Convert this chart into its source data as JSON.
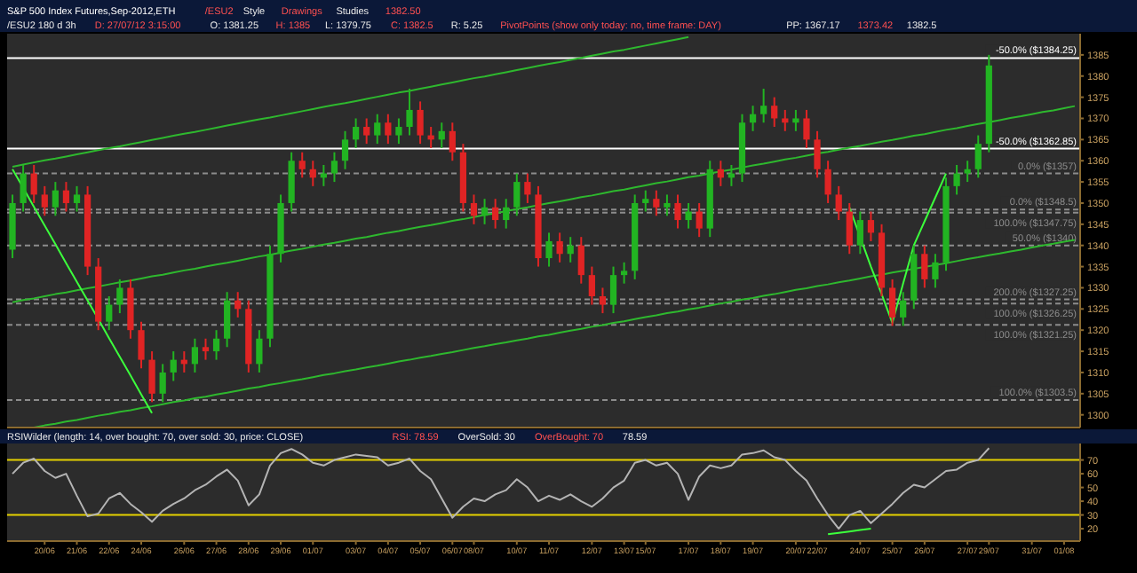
{
  "chart_data": [
    {
      "type": "candlestick",
      "title": "S&P 500 Index Futures,Sep-2012,ETH",
      "categories": [
        null,
        null,
        null,
        null,
        null,
        null,
        null,
        null,
        null,
        null,
        null,
        null,
        null,
        null,
        null,
        null,
        null,
        null,
        null,
        null,
        null,
        null,
        null,
        null,
        null,
        null,
        null,
        null,
        null,
        null,
        null,
        null,
        null,
        null,
        null,
        null,
        null,
        null,
        null,
        null,
        null,
        null,
        null,
        null,
        null,
        null,
        null,
        null,
        null,
        null,
        null,
        null,
        null,
        null,
        null,
        null,
        null,
        null,
        null,
        null,
        null,
        null,
        null,
        null,
        null,
        null,
        null,
        null,
        null,
        null,
        null,
        null,
        null,
        null,
        null,
        null,
        null,
        null,
        null,
        null,
        null,
        null,
        null,
        null,
        null,
        null,
        null,
        null,
        null,
        null,
        null,
        null,
        null,
        null,
        null,
        null,
        null,
        null,
        null,
        null
      ],
      "ohlc": [
        [
          1339,
          1352,
          1337,
          1350
        ],
        [
          1350,
          1359,
          1348,
          1357
        ],
        [
          1357,
          1359,
          1350,
          1352
        ],
        [
          1352,
          1354,
          1347,
          1349
        ],
        [
          1349,
          1355,
          1347,
          1353
        ],
        [
          1353,
          1355,
          1348,
          1350
        ],
        [
          1350,
          1354,
          1348,
          1352
        ],
        [
          1352,
          1354,
          1333,
          1335
        ],
        [
          1335,
          1337,
          1320,
          1322
        ],
        [
          1322,
          1328,
          1320,
          1326
        ],
        [
          1326,
          1332,
          1324,
          1330
        ],
        [
          1330,
          1332,
          1318,
          1320
        ],
        [
          1320,
          1322,
          1311,
          1313
        ],
        [
          1313,
          1315,
          1303,
          1305
        ],
        [
          1305,
          1312,
          1303,
          1310
        ],
        [
          1310,
          1315,
          1308,
          1313
        ],
        [
          1313,
          1315,
          1310,
          1312
        ],
        [
          1312,
          1318,
          1310,
          1316
        ],
        [
          1316,
          1318,
          1313,
          1315
        ],
        [
          1315,
          1320,
          1313,
          1318
        ],
        [
          1318,
          1329,
          1316,
          1327
        ],
        [
          1327,
          1329,
          1323,
          1325
        ],
        [
          1325,
          1327,
          1310,
          1312
        ],
        [
          1312,
          1320,
          1310,
          1318
        ],
        [
          1318,
          1340,
          1316,
          1338
        ],
        [
          1338,
          1352,
          1336,
          1350
        ],
        [
          1350,
          1362,
          1348,
          1360
        ],
        [
          1360,
          1362,
          1356,
          1358
        ],
        [
          1358,
          1360,
          1354,
          1356
        ],
        [
          1356,
          1359,
          1354,
          1357
        ],
        [
          1357,
          1362,
          1355,
          1360
        ],
        [
          1360,
          1367,
          1358,
          1365
        ],
        [
          1365,
          1370,
          1363,
          1368
        ],
        [
          1368,
          1370,
          1364,
          1366
        ],
        [
          1366,
          1371,
          1364,
          1369
        ],
        [
          1369,
          1371,
          1364,
          1366
        ],
        [
          1366,
          1370,
          1364,
          1368
        ],
        [
          1368,
          1377,
          1366,
          1372
        ],
        [
          1372,
          1374,
          1364,
          1366
        ],
        [
          1366,
          1368,
          1363,
          1365
        ],
        [
          1365,
          1369,
          1363,
          1367
        ],
        [
          1367,
          1369,
          1360,
          1362
        ],
        [
          1362,
          1364,
          1348,
          1350
        ],
        [
          1350,
          1352,
          1345,
          1347
        ],
        [
          1347,
          1351,
          1345,
          1349
        ],
        [
          1349,
          1351,
          1344,
          1346
        ],
        [
          1346,
          1351,
          1344,
          1349
        ],
        [
          1349,
          1357,
          1347,
          1355
        ],
        [
          1355,
          1357,
          1350,
          1352
        ],
        [
          1352,
          1354,
          1335,
          1337
        ],
        [
          1337,
          1343,
          1335,
          1341
        ],
        [
          1341,
          1343,
          1336,
          1338
        ],
        [
          1338,
          1342,
          1336,
          1340
        ],
        [
          1340,
          1342,
          1331,
          1333
        ],
        [
          1333,
          1335,
          1326,
          1328
        ],
        [
          1328,
          1330,
          1324,
          1326
        ],
        [
          1326,
          1335,
          1324,
          1333
        ],
        [
          1333,
          1336,
          1331,
          1334
        ],
        [
          1334,
          1352,
          1332,
          1350
        ],
        [
          1350,
          1353,
          1348,
          1351
        ],
        [
          1351,
          1353,
          1347,
          1349
        ],
        [
          1349,
          1352,
          1347,
          1350
        ],
        [
          1350,
          1352,
          1344,
          1346
        ],
        [
          1346,
          1350,
          1344,
          1348
        ],
        [
          1348,
          1350,
          1342,
          1344
        ],
        [
          1344,
          1360,
          1342,
          1358
        ],
        [
          1358,
          1360,
          1354,
          1356
        ],
        [
          1356,
          1359,
          1354,
          1357
        ],
        [
          1357,
          1371,
          1355,
          1369
        ],
        [
          1369,
          1373,
          1367,
          1371
        ],
        [
          1371,
          1377,
          1369,
          1373
        ],
        [
          1373,
          1375,
          1368,
          1370
        ],
        [
          1370,
          1372,
          1367,
          1369
        ],
        [
          1369,
          1372,
          1367,
          1370
        ],
        [
          1370,
          1372,
          1363,
          1365
        ],
        [
          1365,
          1367,
          1356,
          1358
        ],
        [
          1358,
          1360,
          1350,
          1352
        ],
        [
          1352,
          1354,
          1346,
          1348
        ],
        [
          1348,
          1350,
          1338,
          1340
        ],
        [
          1340,
          1348,
          1338,
          1346
        ],
        [
          1346,
          1348,
          1341,
          1343
        ],
        [
          1343,
          1345,
          1328,
          1330
        ],
        [
          1330,
          1332,
          1321,
          1323
        ],
        [
          1323,
          1329,
          1321,
          1327
        ],
        [
          1327,
          1340,
          1325,
          1338
        ],
        [
          1338,
          1340,
          1330,
          1332
        ],
        [
          1332,
          1338,
          1330,
          1336
        ],
        [
          1336,
          1356,
          1334,
          1354
        ],
        [
          1354,
          1359,
          1352,
          1357
        ],
        [
          1357,
          1360,
          1355,
          1358
        ],
        [
          1358,
          1366,
          1356,
          1364
        ],
        [
          1364,
          1385,
          1362,
          1382.5
        ],
        null,
        null,
        null,
        null,
        null,
        null,
        null,
        null
      ],
      "colors": [
        "#22b422",
        "#22b422",
        "#e02424",
        "#e02424",
        "#22b422",
        "#e02424",
        "#22b422",
        "#e02424",
        "#e02424",
        "#22b422",
        "#22b422",
        "#e02424",
        "#e02424",
        "#e02424",
        "#22b422",
        "#22b422",
        "#e02424",
        "#22b422",
        "#e02424",
        "#22b422",
        "#22b422",
        "#e02424",
        "#e02424",
        "#22b422",
        "#22b422",
        "#22b422",
        "#22b422",
        "#e02424",
        "#e02424",
        "#22b422",
        "#22b422",
        "#22b422",
        "#22b422",
        "#e02424",
        "#22b422",
        "#e02424",
        "#22b422",
        "#22b422",
        "#e02424",
        "#e02424",
        "#22b422",
        "#e02424",
        "#e02424",
        "#e02424",
        "#22b422",
        "#e02424",
        "#22b422",
        "#22b422",
        "#e02424",
        "#e02424",
        "#22b422",
        "#e02424",
        "#22b422",
        "#e02424",
        "#e02424",
        "#e02424",
        "#22b422",
        "#22b422",
        "#22b422",
        "#22b422",
        "#e02424",
        "#22b422",
        "#e02424",
        "#22b422",
        "#e02424",
        "#22b422",
        "#e02424",
        "#22b422",
        "#22b422",
        "#22b422",
        "#22b422",
        "#e02424",
        "#e02424",
        "#22b422",
        "#e02424",
        "#e02424",
        "#e02424",
        "#e02424",
        "#e02424",
        "#22b422",
        "#e02424",
        "#e02424",
        "#e02424",
        "#22b422",
        "#22b422",
        "#e02424",
        "#22b422",
        "#22b422",
        "#22b422",
        "#22b422",
        "#22b422",
        "#22b422",
        null,
        null,
        null,
        null,
        null,
        null,
        null,
        null
      ],
      "ylim": [
        1297,
        1390
      ],
      "yticks": [
        1300,
        1305,
        1310,
        1315,
        1320,
        1325,
        1330,
        1335,
        1340,
        1345,
        1350,
        1355,
        1360,
        1365,
        1370,
        1375,
        1380,
        1385
      ],
      "tick_labels": "y",
      "series": [
        {
          "type": "line",
          "color": "#2eb82e",
          "values": [
            1358.6,
            1359.1,
            1359.6,
            1360.1,
            1360.5,
            1361.0,
            1361.5,
            1362.0,
            1362.5,
            1363.0,
            1363.4,
            1363.9,
            1364.4,
            1364.9,
            1365.4,
            1365.9,
            1366.4,
            1366.8,
            1367.3,
            1367.8,
            1368.3,
            1368.8,
            1369.3,
            1369.8,
            1370.2,
            1370.7,
            1371.2,
            1371.7,
            1372.2,
            1372.7,
            1373.2,
            1373.6,
            1374.1,
            1374.6,
            1375.1,
            1375.6,
            1376.1,
            1376.5,
            1377.0,
            1377.5,
            1378.0,
            1378.5,
            1379.0,
            1379.5,
            1379.9,
            1380.4,
            1380.9,
            1381.4,
            1381.9,
            1382.4,
            1382.9,
            1383.3,
            1383.8,
            1384.3,
            1384.8,
            1385.3,
            1385.8,
            1386.2,
            1386.7,
            1387.2,
            1387.7,
            1388.2,
            1388.7,
            1389.2,
            null,
            null,
            null,
            null,
            null,
            null,
            null,
            null,
            null,
            null,
            null,
            null,
            null,
            null,
            null,
            null,
            null,
            null,
            null,
            null,
            null,
            null,
            null,
            null,
            null,
            null,
            null,
            null,
            null,
            null,
            null,
            null,
            null,
            null,
            null,
            null
          ]
        },
        {
          "type": "line",
          "color": "#2eb82e",
          "values": [
            1326.6,
            1327.1,
            1327.5,
            1328.0,
            1328.5,
            1328.9,
            1329.4,
            1329.9,
            1330.3,
            1330.8,
            1331.3,
            1331.7,
            1332.2,
            1332.7,
            1333.1,
            1333.6,
            1334.1,
            1334.5,
            1335.0,
            1335.5,
            1335.9,
            1336.4,
            1336.9,
            1337.4,
            1337.8,
            1338.3,
            1338.8,
            1339.2,
            1339.7,
            1340.2,
            1340.6,
            1341.1,
            1341.6,
            1342.0,
            1342.5,
            1343.0,
            1343.4,
            1343.9,
            1344.4,
            1344.8,
            1345.3,
            1345.8,
            1346.2,
            1346.7,
            1347.2,
            1347.6,
            1348.1,
            1348.6,
            1349.0,
            1349.5,
            1350.0,
            1350.4,
            1350.9,
            1351.4,
            1351.8,
            1352.3,
            1352.8,
            1353.2,
            1353.7,
            1354.2,
            1354.7,
            1355.1,
            1355.6,
            1356.1,
            1356.5,
            1357.0,
            1357.5,
            1357.9,
            1358.4,
            1358.9,
            1359.3,
            1359.8,
            1360.3,
            1360.7,
            1361.2,
            1361.7,
            1362.1,
            1362.6,
            1363.1,
            1363.5,
            1364.0,
            1364.5,
            1364.9,
            1365.4,
            1365.9,
            1366.3,
            1366.8,
            1367.3,
            1367.7,
            1368.2,
            1368.7,
            1369.1,
            1369.6,
            1370.1,
            1370.5,
            1371.0,
            1371.5,
            1371.9,
            1372.4,
            1372.9
          ]
        },
        {
          "type": "line",
          "color": "#2eb82e",
          "values": [
            null,
            null,
            1297.0,
            1297.5,
            1297.9,
            1298.4,
            1298.8,
            1299.3,
            1299.8,
            1300.2,
            1300.7,
            1301.1,
            1301.6,
            1302.0,
            1302.5,
            1303.0,
            1303.4,
            1303.9,
            1304.3,
            1304.8,
            1305.2,
            1305.7,
            1306.2,
            1306.6,
            1307.1,
            1307.5,
            1308.0,
            1308.4,
            1308.9,
            1309.4,
            1309.8,
            1310.3,
            1310.7,
            1311.2,
            1311.6,
            1312.1,
            1312.6,
            1313.0,
            1313.5,
            1313.9,
            1314.4,
            1314.8,
            1315.3,
            1315.8,
            1316.2,
            1316.7,
            1317.1,
            1317.6,
            1318.0,
            1318.5,
            1318.9,
            1319.4,
            1319.9,
            1320.3,
            1320.8,
            1321.2,
            1321.7,
            1322.1,
            1322.6,
            1323.1,
            1323.5,
            1324.0,
            1324.4,
            1324.9,
            1325.3,
            1325.8,
            1326.3,
            1326.7,
            1327.2,
            1327.6,
            1328.1,
            1328.5,
            1329.0,
            1329.5,
            1329.9,
            1330.4,
            1330.8,
            1331.3,
            1331.7,
            1332.2,
            1332.7,
            1333.1,
            1333.6,
            1334.0,
            1334.5,
            1334.9,
            1335.4,
            1335.8,
            1336.3,
            1336.8,
            1337.2,
            1337.7,
            1338.1,
            1338.6,
            1339.0,
            1339.5,
            1340.0,
            1340.4,
            1340.9,
            1341.3
          ]
        },
        {
          "type": "line",
          "color": "#3cff3c",
          "values": [
            1358,
            1353.6,
            1349.1,
            1344.7,
            1340.3,
            1335.8,
            1331.4,
            1327.0,
            1322.6,
            1318.1,
            1313.7,
            1309.3,
            1304.8,
            1300.4,
            null,
            null,
            null,
            null,
            null,
            null,
            null,
            null,
            null,
            null,
            null,
            null,
            null,
            null,
            null,
            null,
            null,
            null,
            null,
            null,
            null,
            null,
            null,
            null,
            null,
            null,
            null,
            null,
            null,
            null,
            null,
            null,
            null,
            null,
            null,
            null,
            null,
            null,
            null,
            null,
            null,
            null,
            null,
            null,
            null,
            null,
            null,
            null,
            null,
            null,
            null,
            null,
            null,
            null,
            null,
            null,
            null,
            null,
            null,
            null,
            null,
            null,
            null,
            null,
            null,
            null,
            null,
            null,
            null,
            null,
            null,
            null,
            null,
            null,
            null,
            null,
            null,
            null,
            null,
            null,
            null,
            null,
            null,
            null,
            null,
            null
          ]
        },
        {
          "type": "line",
          "color": "#3cff3c",
          "values": [
            null,
            null,
            null,
            null,
            null,
            null,
            null,
            null,
            null,
            null,
            null,
            null,
            null,
            null,
            null,
            null,
            null,
            null,
            null,
            null,
            null,
            null,
            null,
            null,
            null,
            null,
            null,
            null,
            null,
            null,
            null,
            null,
            null,
            null,
            null,
            null,
            null,
            null,
            null,
            null,
            null,
            null,
            null,
            null,
            null,
            null,
            null,
            null,
            null,
            null,
            null,
            null,
            null,
            null,
            null,
            null,
            null,
            null,
            null,
            null,
            null,
            null,
            null,
            null,
            null,
            null,
            null,
            null,
            null,
            null,
            null,
            null,
            null,
            null,
            null,
            null,
            null,
            null,
            1349,
            1342,
            1335,
            1328.5,
            1321.7,
            1331,
            1340,
            1345.7,
            1351.3,
            1357,
            null,
            null,
            null,
            null,
            null,
            null,
            null,
            null,
            null,
            null,
            null,
            null
          ]
        }
      ],
      "ref_lines": [
        {
          "axis": "y",
          "value": 1384.25,
          "label": "-50.0% ($1384.25)",
          "color": "#ffffff",
          "line_style": "solid"
        },
        {
          "axis": "y",
          "value": 1362.85,
          "label": "-50.0% ($1362.85)",
          "color": "#ffffff",
          "line_style": "solid"
        },
        {
          "axis": "y",
          "value": 1357,
          "label": "0.0% ($1357)",
          "color": "#8c8c8c",
          "line_style": "dashed"
        },
        {
          "axis": "y",
          "value": 1348.5,
          "label": "0.0% ($1348.5)",
          "color": "#8c8c8c",
          "line_style": "dashed"
        },
        {
          "axis": "y",
          "value": 1347.75,
          "label": "100.0% ($1347.75)",
          "color": "#8c8c8c",
          "line_style": "dashed"
        },
        {
          "axis": "y",
          "value": 1340,
          "label": "50.0% ($1340)",
          "color": "#8c8c8c",
          "line_style": "dashed"
        },
        {
          "axis": "y",
          "value": 1327.25,
          "label": "200.0% ($1327.25)",
          "color": "#8c8c8c",
          "line_style": "dashed"
        },
        {
          "axis": "y",
          "value": 1326.25,
          "label": "100.0% ($1326.25)",
          "color": "#8c8c8c",
          "line_style": "dashed"
        },
        {
          "axis": "y",
          "value": 1321.25,
          "label": "100.0% ($1321.25)",
          "color": "#8c8c8c",
          "line_style": "dashed"
        },
        {
          "axis": "y",
          "value": 1303.5,
          "label": "100.0% ($1303.5)",
          "color": "#8c8c8c",
          "line_style": "dashed"
        }
      ],
      "annotations": [
        "/ESU2",
        "Style",
        "Drawings",
        "Studies",
        "1382.50",
        "/ESU2 180 d 3h",
        "D: 27/07/12 3:15:00",
        "O: 1381.25",
        "H: 1385",
        "L: 1379.75",
        "C: 1382.5",
        "R: 5.25",
        "PivotPoints (show only today: no, time frame: DAY)",
        "PP: 1367.17",
        "1373.42",
        "1382.5"
      ]
    },
    {
      "type": "line",
      "categories": [
        null,
        null,
        null,
        "20/06",
        null,
        null,
        "21/06",
        null,
        null,
        "22/06",
        null,
        null,
        "24/06",
        null,
        null,
        null,
        "26/06",
        null,
        null,
        "27/06",
        null,
        null,
        "28/06",
        null,
        null,
        "29/06",
        null,
        null,
        "01/07",
        null,
        null,
        null,
        "03/07",
        null,
        null,
        "04/07",
        null,
        null,
        "05/07",
        null,
        null,
        "06/07",
        null,
        "08/07",
        null,
        null,
        null,
        "10/07",
        null,
        null,
        "11/07",
        null,
        null,
        null,
        "12/07",
        null,
        null,
        "13/07",
        null,
        "15/07",
        null,
        null,
        null,
        "17/07",
        null,
        null,
        "18/07",
        null,
        null,
        "19/07",
        null,
        null,
        null,
        "20/07",
        null,
        "22/07",
        null,
        null,
        null,
        "24/07",
        null,
        null,
        "25/07",
        null,
        null,
        "26/07",
        null,
        null,
        null,
        "27/07",
        null,
        "29/07",
        null,
        null,
        null,
        "31/07",
        null,
        null,
        "01/08",
        null
      ],
      "series": [
        {
          "type": "line",
          "color": "#b4b4b4",
          "values": [
            60,
            68,
            71,
            62,
            57,
            60,
            44,
            29,
            31,
            42,
            46,
            38,
            32,
            25,
            33,
            38,
            42,
            48,
            52,
            58,
            63,
            55,
            37,
            45,
            66,
            75,
            78,
            74,
            68,
            66,
            70,
            72,
            74,
            73,
            72,
            66,
            68,
            71,
            62,
            56,
            42,
            28,
            36,
            42,
            40,
            45,
            48,
            56,
            50,
            40,
            44,
            41,
            45,
            40,
            36,
            42,
            50,
            55,
            68,
            70,
            66,
            68,
            60,
            41,
            58,
            66,
            64,
            66,
            74,
            75,
            77,
            72,
            70,
            62,
            55,
            42,
            30,
            20,
            30,
            33,
            24,
            31,
            38,
            46,
            52,
            50,
            56,
            62,
            63,
            68,
            70,
            78.59,
            null,
            null,
            null,
            null,
            null,
            null,
            null,
            null
          ]
        },
        {
          "type": "line",
          "color": "#3cff3c",
          "values": [
            null,
            null,
            null,
            null,
            null,
            null,
            null,
            null,
            null,
            null,
            null,
            null,
            null,
            null,
            null,
            null,
            null,
            null,
            null,
            null,
            null,
            null,
            null,
            null,
            null,
            null,
            null,
            null,
            null,
            null,
            null,
            null,
            null,
            null,
            null,
            null,
            null,
            null,
            null,
            null,
            null,
            null,
            null,
            null,
            null,
            null,
            null,
            null,
            null,
            null,
            null,
            null,
            null,
            null,
            null,
            null,
            null,
            null,
            null,
            null,
            null,
            null,
            null,
            null,
            null,
            null,
            null,
            null,
            null,
            null,
            null,
            null,
            null,
            null,
            null,
            null,
            16,
            17,
            18,
            19,
            20,
            null,
            null,
            null,
            null,
            null,
            null,
            null,
            null,
            null,
            null,
            null,
            null,
            null,
            null,
            null,
            null,
            null,
            null,
            null
          ]
        }
      ],
      "ylim": [
        11,
        82
      ],
      "yticks": [
        20,
        30,
        40,
        50,
        60,
        70
      ],
      "ref_lines": [
        {
          "axis": "y",
          "value": 70,
          "color": "#e6d200",
          "line_style": "solid"
        },
        {
          "axis": "y",
          "value": 30,
          "color": "#e6d200",
          "line_style": "solid"
        }
      ],
      "annotations": [
        "RSIWilder (length: 14, over bought: 70, over sold: 30, price: CLOSE)",
        "RSI: 78.59",
        "OverSold: 30",
        "OverBought: 70",
        "78.59"
      ]
    }
  ]
}
